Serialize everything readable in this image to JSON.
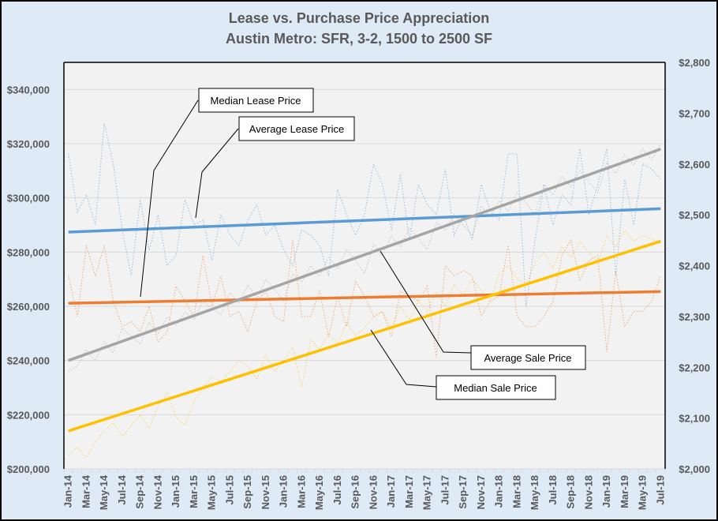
{
  "chart_data": {
    "type": "line",
    "title": "Lease vs. Purchase Price Appreciation",
    "subtitle": "Austin Metro:  SFR, 3-2, 1500 to 2500 SF",
    "x_labels": [
      "Jan-14",
      "Mar-14",
      "May-14",
      "Jul-14",
      "Sep-14",
      "Nov-14",
      "Jan-15",
      "Mar-15",
      "May-15",
      "Jul-15",
      "Sep-15",
      "Nov-15",
      "Jan-16",
      "Mar-16",
      "May-16",
      "Jul-16",
      "Sep-16",
      "Nov-16",
      "Jan-17",
      "Mar-17",
      "May-17",
      "Jul-17",
      "Sep-17",
      "Nov-17",
      "Jan-18",
      "Mar-18",
      "May-18",
      "Jul-18",
      "Sep-18",
      "Nov-18",
      "Jan-19",
      "Mar-19",
      "May-19",
      "Jul-19"
    ],
    "n_points": 67,
    "left_axis": {
      "min": 200000,
      "max": 350000,
      "ticks": [
        200000,
        220000,
        240000,
        260000,
        280000,
        300000,
        320000,
        340000
      ],
      "tick_labels": [
        "$200,000",
        "$220,000",
        "$240,000",
        "$260,000",
        "$280,000",
        "$300,000",
        "$320,000",
        "$340,000"
      ]
    },
    "right_axis": {
      "min": 2000,
      "max": 2800,
      "ticks": [
        2000,
        2100,
        2200,
        2300,
        2400,
        2500,
        2600,
        2700,
        2800
      ],
      "tick_labels": [
        "$2,000",
        "$2,100",
        "$2,200",
        "$2,300",
        "$2,400",
        "$2,500",
        "$2,600",
        "$2,700",
        "$2,800"
      ]
    },
    "grid": true,
    "series": [
      {
        "name": "Average Lease Price",
        "axis": "right",
        "color": "#5b9bd5",
        "values": [
          2620,
          2505,
          2540,
          2480,
          2680,
          2600,
          2470,
          2380,
          2530,
          2430,
          2500,
          2400,
          2420,
          2530,
          2480,
          2490,
          2410,
          2500,
          2460,
          2440,
          2490,
          2520,
          2460,
          2480,
          2430,
          2400,
          2470,
          2460,
          2440,
          2380,
          2550,
          2500,
          2460,
          2500,
          2600,
          2560,
          2470,
          2580,
          2450,
          2560,
          2520,
          2500,
          2590,
          2460,
          2500,
          2450,
          2560,
          2510,
          2490,
          2620,
          2620,
          2320,
          2450,
          2560,
          2480,
          2540,
          2520,
          2630,
          2500,
          2560,
          2630,
          2380,
          2570,
          2480,
          2600,
          2590,
          2570
        ],
        "trend": [
          2466,
          2512
        ]
      },
      {
        "name": "Median Lease Price",
        "axis": "right",
        "color": "#ed7d31",
        "values": [
          2380,
          2300,
          2440,
          2380,
          2440,
          2330,
          2280,
          2290,
          2270,
          2320,
          2250,
          2270,
          2360,
          2330,
          2300,
          2420,
          2320,
          2380,
          2300,
          2310,
          2270,
          2330,
          2350,
          2300,
          2290,
          2450,
          2300,
          2300,
          2350,
          2260,
          2340,
          2280,
          2370,
          2340,
          2300,
          2310,
          2260,
          2350,
          2340,
          2330,
          2360,
          2220,
          2400,
          2380,
          2390,
          2380,
          2300,
          2330,
          2340,
          2440,
          2300,
          2280,
          2280,
          2300,
          2330,
          2420,
          2450,
          2370,
          2410,
          2420,
          2230,
          2390,
          2280,
          2310,
          2310,
          2330,
          2380
        ],
        "trend": [
          2326,
          2349
        ]
      },
      {
        "name": "Average Sale Price",
        "axis": "left",
        "color": "#a5a5a5",
        "values": [
          236000,
          238000,
          244000,
          240000,
          247000,
          243000,
          252000,
          249000,
          246000,
          254000,
          250000,
          256000,
          253000,
          258000,
          255000,
          262000,
          259000,
          257000,
          265000,
          261000,
          268000,
          263000,
          270000,
          266000,
          262000,
          272000,
          269000,
          275000,
          271000,
          278000,
          274000,
          281000,
          277000,
          272000,
          283000,
          279000,
          286000,
          282000,
          289000,
          285000,
          281000,
          291000,
          288000,
          294000,
          290000,
          286000,
          297000,
          293000,
          299000,
          295000,
          302000,
          298000,
          294000,
          305000,
          301000,
          308000,
          304000,
          310000,
          306000,
          302000,
          313000,
          309000,
          316000,
          312000,
          318000,
          314000,
          320000
        ],
        "trend": [
          240000,
          318000
        ]
      },
      {
        "name": "Median Sale Price",
        "axis": "left",
        "color": "#ffc000",
        "values": [
          205000,
          208000,
          204000,
          210000,
          214000,
          217000,
          212000,
          216000,
          220000,
          215000,
          223000,
          228000,
          219000,
          216000,
          225000,
          230000,
          234000,
          232000,
          236000,
          240000,
          238000,
          233000,
          242000,
          236000,
          240000,
          245000,
          230000,
          248000,
          244000,
          250000,
          246000,
          254000,
          249000,
          252000,
          256000,
          258000,
          252000,
          260000,
          255000,
          262000,
          258000,
          265000,
          260000,
          268000,
          264000,
          270000,
          266000,
          262000,
          272000,
          275000,
          270000,
          268000,
          276000,
          280000,
          274000,
          282000,
          278000,
          284000,
          280000,
          276000,
          286000,
          282000,
          288000,
          284000,
          286000,
          285000,
          283000
        ],
        "trend": [
          214000,
          284000
        ]
      }
    ],
    "annotations": [
      "Median Lease Price",
      "Average Lease Price",
      "Average Sale Price",
      "Median Sale Price"
    ]
  }
}
